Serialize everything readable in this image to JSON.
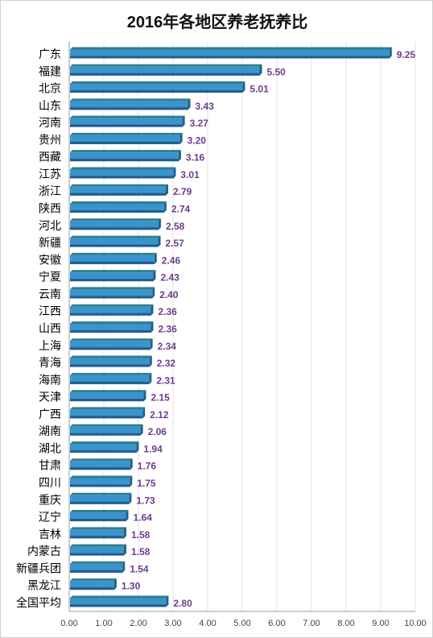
{
  "chart_data": {
    "type": "bar",
    "orientation": "horizontal",
    "title": "2016年各地区养老抚养比",
    "xlabel": "",
    "ylabel": "",
    "xlim": [
      0,
      10
    ],
    "ticks": [
      "0.00",
      "1.00",
      "2.00",
      "3.00",
      "4.00",
      "5.00",
      "6.00",
      "7.00",
      "8.00",
      "9.00",
      "10.00"
    ],
    "grid": true,
    "legend": "none",
    "categories": [
      "广东",
      "福建",
      "北京",
      "山东",
      "河南",
      "贵州",
      "西藏",
      "江苏",
      "浙江",
      "陕西",
      "河北",
      "新疆",
      "安徽",
      "宁夏",
      "云南",
      "江西",
      "山西",
      "上海",
      "青海",
      "海南",
      "天津",
      "广西",
      "湖南",
      "湖北",
      "甘肃",
      "四川",
      "重庆",
      "辽宁",
      "吉林",
      "内蒙古",
      "新疆兵团",
      "黑龙江",
      "全国平均"
    ],
    "values": [
      9.25,
      5.5,
      5.01,
      3.43,
      3.27,
      3.2,
      3.16,
      3.01,
      2.79,
      2.74,
      2.58,
      2.57,
      2.46,
      2.43,
      2.4,
      2.36,
      2.36,
      2.34,
      2.32,
      2.31,
      2.15,
      2.12,
      2.06,
      1.94,
      1.76,
      1.75,
      1.73,
      1.64,
      1.58,
      1.58,
      1.54,
      1.3,
      2.8
    ],
    "value_labels": [
      "9.25",
      "5.50",
      "5.01",
      "3.43",
      "3.27",
      "3.20",
      "3.16",
      "3.01",
      "2.79",
      "2.74",
      "2.58",
      "2.57",
      "2.46",
      "2.43",
      "2.40",
      "2.36",
      "2.36",
      "2.34",
      "2.32",
      "2.31",
      "2.15",
      "2.12",
      "2.06",
      "1.94",
      "1.76",
      "1.75",
      "1.73",
      "1.64",
      "1.58",
      "1.58",
      "1.54",
      "1.30",
      "2.80"
    ],
    "colors": {
      "bar_top": "#2f7f8c",
      "bar_face": "#3a93cc",
      "bar_bottom": "#1f5f8a",
      "value_label": "#6b3d8f",
      "grid": "#e3e3e3",
      "axis": "#9a9a9a"
    }
  }
}
